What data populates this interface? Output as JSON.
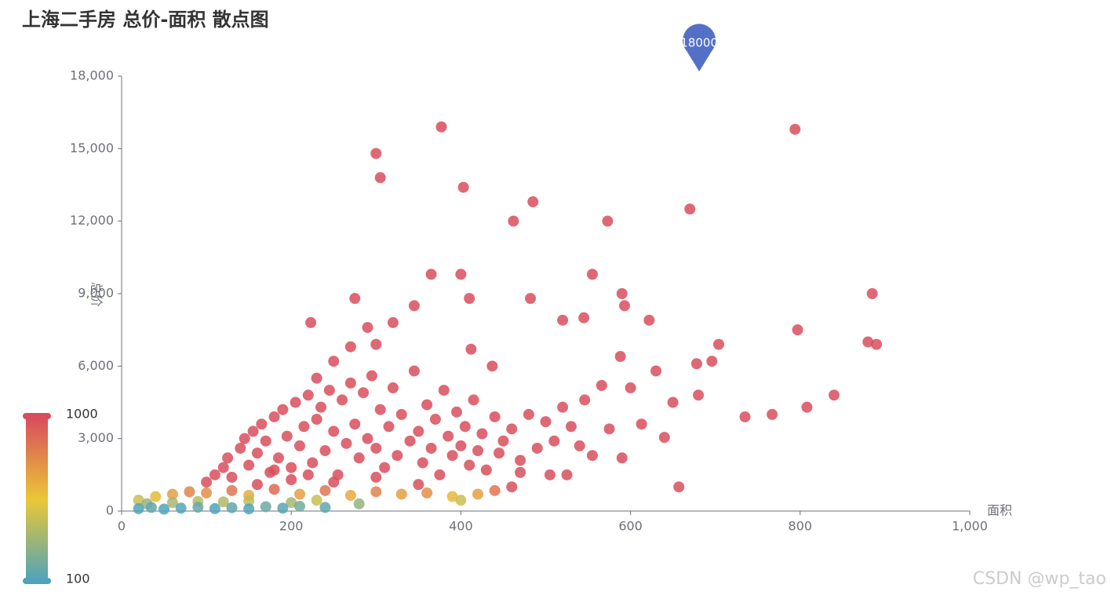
{
  "chart_data": {
    "type": "scatter",
    "title": "上海二手房 总价-面积 散点图",
    "x_label": "面积",
    "y_label": "总价",
    "x": [
      300,
      305,
      377,
      403,
      462,
      485,
      573,
      670,
      794,
      365,
      400,
      555,
      590,
      885,
      275,
      482,
      345,
      410,
      593,
      223,
      320,
      520,
      545,
      622,
      797,
      880,
      890,
      704,
      696,
      678,
      680,
      735,
      767,
      808,
      840,
      657,
      590,
      546,
      566,
      588,
      412,
      437,
      630,
      600,
      650,
      613,
      640,
      575,
      555,
      505,
      525,
      460,
      470,
      300,
      290,
      270,
      250,
      230,
      100,
      110,
      120,
      125,
      130,
      140,
      145,
      150,
      155,
      160,
      165,
      170,
      175,
      180,
      185,
      190,
      195,
      200,
      205,
      210,
      215,
      220,
      225,
      230,
      235,
      240,
      245,
      250,
      255,
      260,
      265,
      270,
      275,
      280,
      285,
      290,
      295,
      300,
      305,
      310,
      315,
      320,
      325,
      330,
      340,
      345,
      350,
      355,
      360,
      365,
      370,
      375,
      380,
      385,
      390,
      395,
      400,
      405,
      410,
      415,
      420,
      425,
      430,
      440,
      445,
      450,
      460,
      470,
      480,
      490,
      500,
      510,
      520,
      530,
      540,
      160,
      200,
      250,
      300,
      350,
      180,
      220,
      20,
      40,
      60,
      80,
      100,
      130,
      150,
      180,
      210,
      240,
      270,
      300,
      330,
      360,
      390,
      400,
      420,
      440,
      30,
      60,
      90,
      120,
      150,
      200,
      230,
      280,
      20,
      35,
      50,
      70,
      90,
      110,
      130,
      150,
      170,
      190,
      210,
      240
    ],
    "values": [
      14800,
      13800,
      15900,
      13400,
      12000,
      12800,
      12000,
      12500,
      15800,
      9800,
      9800,
      9800,
      9000,
      9000,
      8800,
      8800,
      8500,
      8800,
      8500,
      7800,
      7800,
      7900,
      8000,
      7900,
      7500,
      7000,
      6900,
      6900,
      6200,
      6100,
      4800,
      3900,
      4000,
      4300,
      4800,
      1000,
      2200,
      4600,
      5200,
      6400,
      6700,
      6000,
      5800,
      5100,
      4500,
      3600,
      3050,
      3400,
      2300,
      1500,
      1500,
      1000,
      1600,
      6900,
      7600,
      6800,
      6200,
      5500,
      1200,
      1500,
      1800,
      2200,
      1400,
      2600,
      3000,
      1900,
      3300,
      2400,
      3600,
      2900,
      1600,
      3900,
      2200,
      4200,
      3100,
      1800,
      4500,
      2700,
      3500,
      4800,
      2000,
      3800,
      4300,
      2500,
      5000,
      3300,
      1500,
      4600,
      2800,
      5300,
      3600,
      2200,
      4900,
      3000,
      5600,
      2600,
      4200,
      1800,
      3500,
      5100,
      2300,
      4000,
      2900,
      5800,
      3300,
      2000,
      4400,
      2600,
      3800,
      1500,
      5000,
      3100,
      2300,
      4100,
      2700,
      3500,
      1900,
      4600,
      2500,
      3200,
      1700,
      3900,
      2400,
      2900,
      3400,
      2100,
      4000,
      2600,
      3700,
      2900,
      4300,
      3500,
      2700,
      1100,
      1300,
      1200,
      1400,
      1100,
      1700,
      1500,
      450,
      600,
      700,
      800,
      750,
      850,
      650,
      900,
      700,
      850,
      650,
      800,
      700,
      750,
      600,
      450,
      700,
      850,
      300,
      350,
      400,
      380,
      420,
      350,
      450,
      300,
      100,
      150,
      80,
      120,
      160,
      100,
      140,
      90,
      180,
      120,
      200,
      150
    ],
    "xlim": [
      0,
      1000
    ],
    "xticks": [
      0,
      200,
      400,
      600,
      800,
      {
        "value": 1000,
        "label": "1,000"
      }
    ],
    "ylim": [
      0,
      18000
    ],
    "yticks": [
      0,
      {
        "value": 3000,
        "label": "3,000"
      },
      {
        "value": 6000,
        "label": "6,000"
      },
      {
        "value": 9000,
        "label": "9,000"
      },
      {
        "value": 12000,
        "label": "12,000"
      },
      {
        "value": 15000,
        "label": "15,000"
      },
      {
        "value": 18000,
        "label": "18,000"
      }
    ],
    "mark_point": {
      "x": 681,
      "value": 18000,
      "color": "#5470c6"
    },
    "visual_map": {
      "min": 100,
      "max": 1000,
      "colors": [
        "#50a3ba",
        "#eac736",
        "#d94e5d"
      ]
    },
    "watermark": "CSDN @wp_tao"
  }
}
